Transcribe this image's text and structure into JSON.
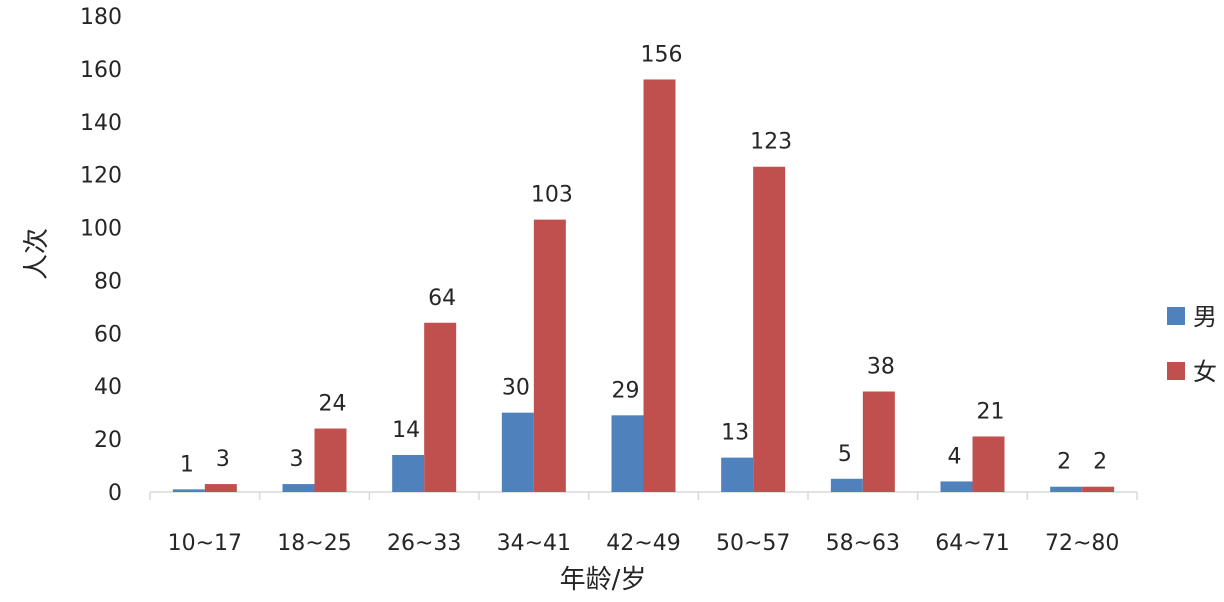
{
  "chart_data": {
    "type": "bar",
    "categories": [
      "10~17",
      "18~25",
      "26~33",
      "34~41",
      "42~49",
      "50~57",
      "58~63",
      "64~71",
      "72~80"
    ],
    "series": [
      {
        "name": "男",
        "color": "#4f81bd",
        "values": [
          1,
          3,
          14,
          30,
          29,
          13,
          5,
          4,
          2
        ]
      },
      {
        "name": "女",
        "color": "#c0504d",
        "values": [
          3,
          24,
          64,
          103,
          156,
          123,
          38,
          21,
          2
        ]
      }
    ],
    "xlabel": "年龄/岁",
    "ylabel": "人次",
    "ylim": [
      0,
      180
    ],
    "yticks": [
      0,
      20,
      40,
      60,
      80,
      100,
      120,
      140,
      160,
      180
    ],
    "grid": false,
    "legend_position": "right",
    "data_labels": true
  }
}
